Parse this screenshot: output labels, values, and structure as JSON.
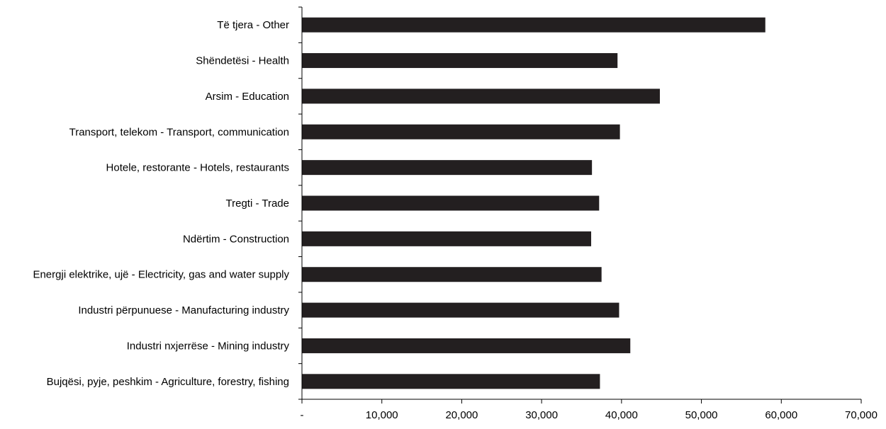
{
  "chart_data": {
    "type": "bar",
    "orientation": "horizontal",
    "categories": [
      "Bujqësi, pyje, peshkim - Agriculture, forestry, fishing",
      "Industri nxjerrëse - Mining industry",
      "Industri përpunuese - Manufacturing industry",
      "Energji elektrike, ujë - Electricity, gas and water supply",
      "Ndërtim - Construction",
      "Tregti - Trade",
      "Hotele, restorante - Hotels, restaurants",
      "Transport, telekom - Transport, communication",
      "Arsim - Education",
      "Shëndetësi - Health",
      "Të tjera - Other"
    ],
    "values": [
      37300,
      41100,
      39700,
      37500,
      36200,
      37200,
      36300,
      39800,
      44800,
      39500,
      58000
    ],
    "xlim": [
      0,
      70000
    ],
    "x_ticks": [
      0,
      10000,
      20000,
      30000,
      40000,
      50000,
      60000,
      70000
    ],
    "x_tick_labels": [
      "-",
      "10,000",
      "20,000",
      "30,000",
      "40,000",
      "50,000",
      "60,000",
      "70,000"
    ],
    "bar_color": "#231f20",
    "axis_color": "#000000",
    "grid": false,
    "legend": "none",
    "title": "",
    "xlabel": "",
    "ylabel": ""
  }
}
